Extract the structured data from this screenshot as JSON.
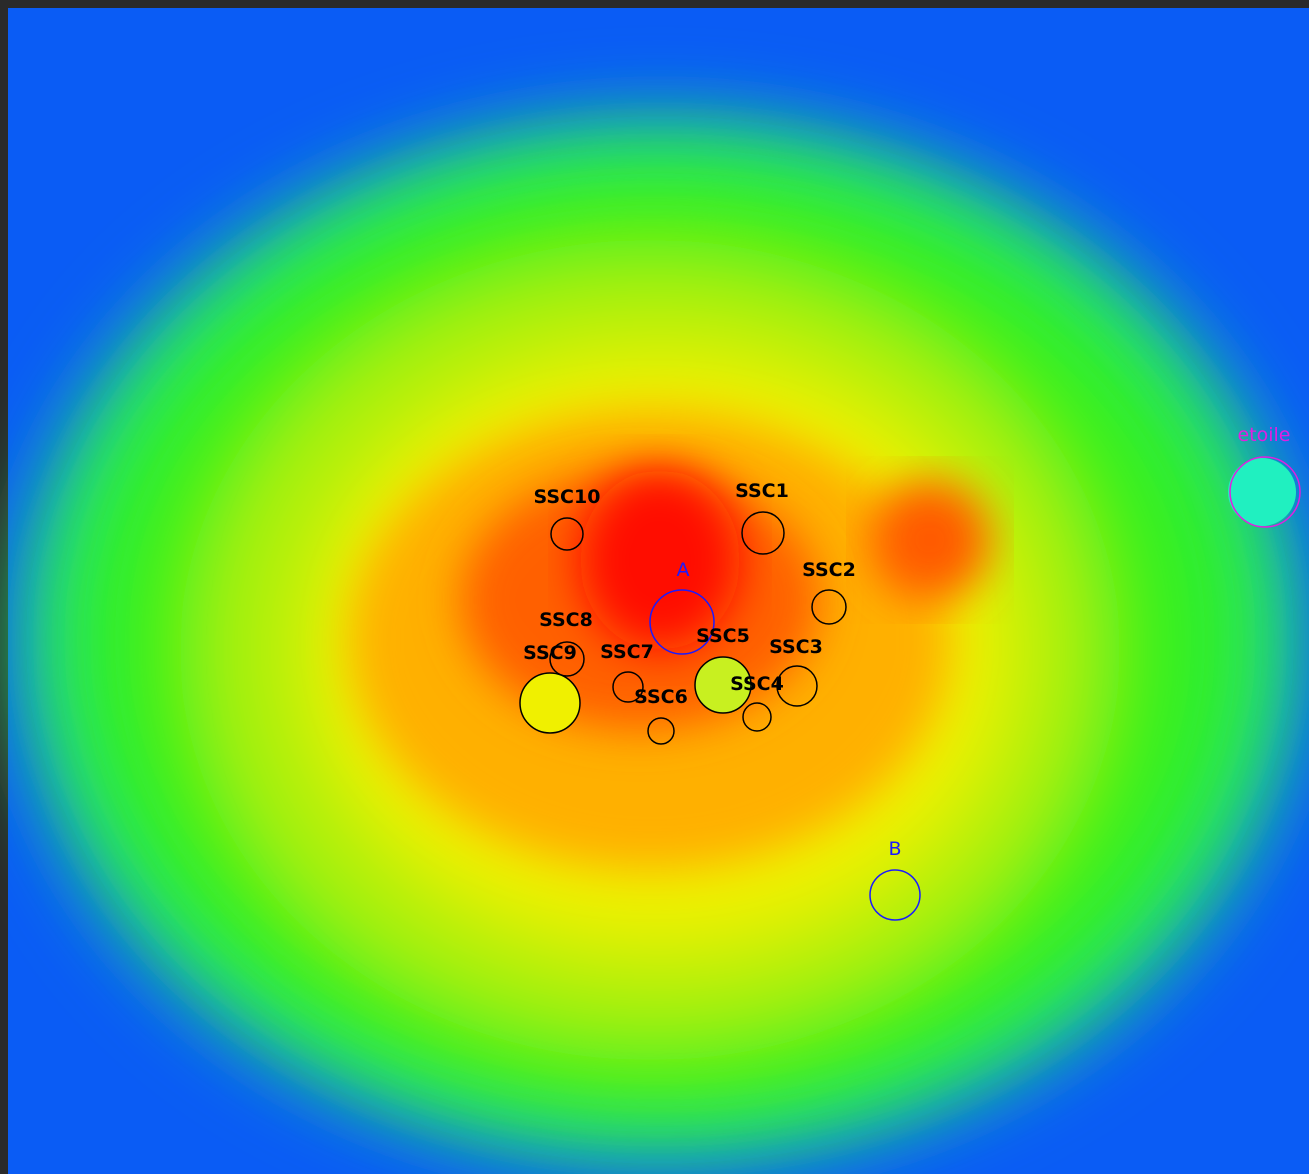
{
  "regions": [
    {
      "label": "SSC10"
    },
    {
      "label": "SSC1"
    },
    {
      "label": "SSC2"
    },
    {
      "label": "A"
    },
    {
      "label": "SSC8"
    },
    {
      "label": "SSC9"
    },
    {
      "label": "SSC7"
    },
    {
      "label": "SSC5"
    },
    {
      "label": "SSC3"
    },
    {
      "label": "SSC4"
    },
    {
      "label": "SSC6"
    },
    {
      "label": "B"
    },
    {
      "label": "etoile"
    }
  ]
}
